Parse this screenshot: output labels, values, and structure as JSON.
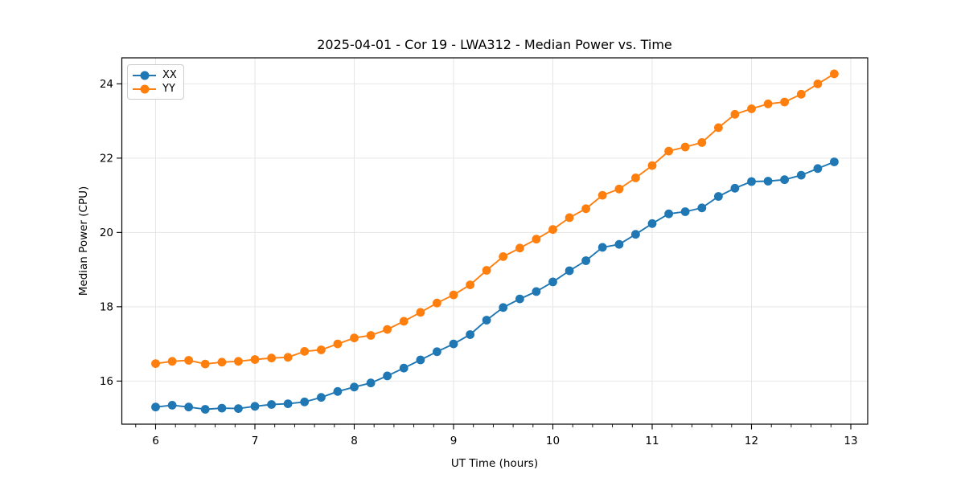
{
  "chart_data": {
    "type": "line",
    "title": "2025-04-01 - Cor 19 - LWA312 - Median Power vs. Time",
    "xlabel": "UT Time (hours)",
    "ylabel": "Median Power (CPU)",
    "xlim": [
      5.66,
      13.17
    ],
    "ylim": [
      14.84,
      24.7
    ],
    "xticks": [
      6,
      7,
      8,
      9,
      10,
      11,
      12,
      13
    ],
    "yticks": [
      16,
      18,
      20,
      22,
      24
    ],
    "x_minor_step": 0.2,
    "grid": true,
    "grid_color": "#e6e6e6",
    "legend_position": "upper-left",
    "background": "#ffffff",
    "x": [
      6.0,
      6.167,
      6.333,
      6.5,
      6.667,
      6.833,
      7.0,
      7.167,
      7.333,
      7.5,
      7.667,
      7.833,
      8.0,
      8.167,
      8.333,
      8.5,
      8.667,
      8.833,
      9.0,
      9.167,
      9.333,
      9.5,
      9.667,
      9.833,
      10.0,
      10.167,
      10.333,
      10.5,
      10.667,
      10.833,
      11.0,
      11.167,
      11.333,
      11.5,
      11.667,
      11.833,
      12.0,
      12.167,
      12.333,
      12.5,
      12.667,
      12.833
    ],
    "series": [
      {
        "name": "XX",
        "color": "#1f77b4",
        "values": [
          15.3,
          15.35,
          15.3,
          15.24,
          15.27,
          15.26,
          15.32,
          15.37,
          15.39,
          15.44,
          15.56,
          15.72,
          15.84,
          15.95,
          16.14,
          16.35,
          16.57,
          16.79,
          17.0,
          17.25,
          17.64,
          17.98,
          18.21,
          18.41,
          18.67,
          18.97,
          19.24,
          19.6,
          19.68,
          19.95,
          20.24,
          20.5,
          20.56,
          20.66,
          20.97,
          21.19,
          21.37,
          21.38,
          21.42,
          21.54,
          21.72,
          21.9
        ]
      },
      {
        "name": "YY",
        "color": "#ff7f0e",
        "values": [
          16.47,
          16.53,
          16.56,
          16.46,
          16.51,
          16.53,
          16.58,
          16.62,
          16.64,
          16.8,
          16.84,
          17.0,
          17.16,
          17.23,
          17.39,
          17.61,
          17.85,
          18.1,
          18.32,
          18.59,
          18.98,
          19.35,
          19.58,
          19.82,
          20.08,
          20.4,
          20.64,
          21.0,
          21.17,
          21.47,
          21.8,
          22.19,
          22.3,
          22.42,
          22.82,
          23.18,
          23.33,
          23.46,
          23.51,
          23.72,
          24.0,
          24.27
        ]
      }
    ]
  }
}
